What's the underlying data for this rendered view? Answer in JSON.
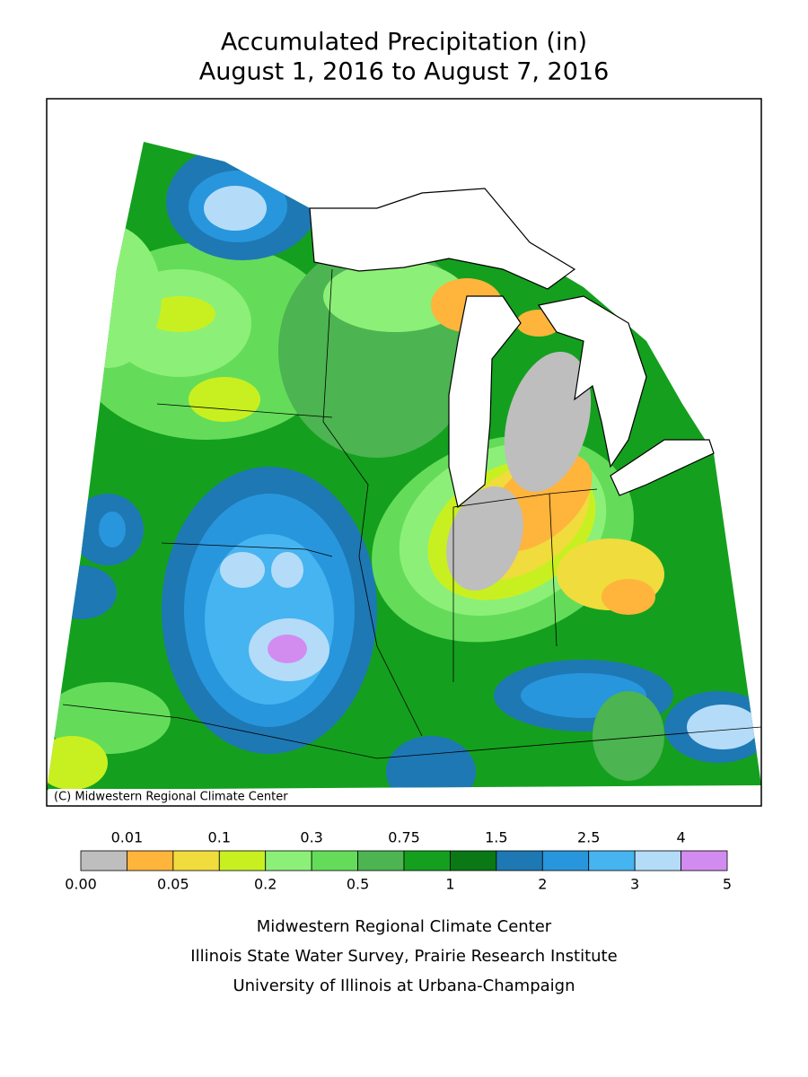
{
  "header": {
    "title": "Accumulated Precipitation (in)",
    "subtitle": "August 1, 2016 to August 7, 2016"
  },
  "map": {
    "credit": "(C) Midwestern Regional Climate Center"
  },
  "legend": {
    "colors": [
      "#bebebe",
      "#ffb43c",
      "#f0dc3c",
      "#c8f020",
      "#8cf078",
      "#64dc5a",
      "#4cb450",
      "#14a01e",
      "#0a7814",
      "#1e78b4",
      "#2896dc",
      "#46b4f0",
      "#b4dcf8",
      "#d28cf0"
    ],
    "labels_top": [
      "0.01",
      "0.1",
      "0.3",
      "0.75",
      "1.5",
      "2.5",
      "4"
    ],
    "labels_bottom": [
      "0.00",
      "0.05",
      "0.2",
      "0.5",
      "1",
      "2",
      "3",
      "5"
    ]
  },
  "footer": {
    "lines": [
      "Midwestern Regional Climate Center",
      "Illinois State Water Survey, Prairie Research Institute",
      "University of Illinois at Urbana-Champaign"
    ]
  }
}
